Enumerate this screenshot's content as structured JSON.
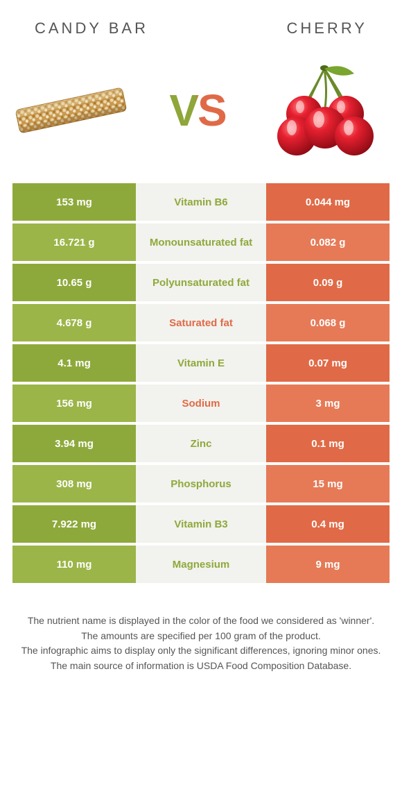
{
  "colors": {
    "left_dark": "#8ea93b",
    "left_light": "#9bb548",
    "mid": "#f2f2ee",
    "right_dark": "#e06a47",
    "right_light": "#e67a57",
    "label_left": "#8ea93b",
    "label_right": "#e06a47"
  },
  "header": {
    "left": "CANDY BAR",
    "right": "CHERRY"
  },
  "vs_text": "VS",
  "rows": [
    {
      "left": "153 mg",
      "label": "Vitamin B6",
      "right": "0.044 mg",
      "winner": "left"
    },
    {
      "left": "16.721 g",
      "label": "Monounsaturated fat",
      "right": "0.082 g",
      "winner": "left"
    },
    {
      "left": "10.65 g",
      "label": "Polyunsaturated fat",
      "right": "0.09 g",
      "winner": "left"
    },
    {
      "left": "4.678 g",
      "label": "Saturated fat",
      "right": "0.068 g",
      "winner": "right"
    },
    {
      "left": "4.1 mg",
      "label": "Vitamin E",
      "right": "0.07 mg",
      "winner": "left"
    },
    {
      "left": "156 mg",
      "label": "Sodium",
      "right": "3 mg",
      "winner": "right"
    },
    {
      "left": "3.94 mg",
      "label": "Zinc",
      "right": "0.1 mg",
      "winner": "left"
    },
    {
      "left": "308 mg",
      "label": "Phosphorus",
      "right": "15 mg",
      "winner": "left"
    },
    {
      "left": "7.922 mg",
      "label": "Vitamin B3",
      "right": "0.4 mg",
      "winner": "left"
    },
    {
      "left": "110 mg",
      "label": "Magnesium",
      "right": "9 mg",
      "winner": "left"
    }
  ],
  "footer": [
    "The nutrient name is displayed in the color of the food we considered as 'winner'.",
    "The amounts are specified per 100 gram of the product.",
    "The infographic aims to display only the significant differences, ignoring minor ones.",
    "The main source of information is USDA Food Composition Database."
  ]
}
